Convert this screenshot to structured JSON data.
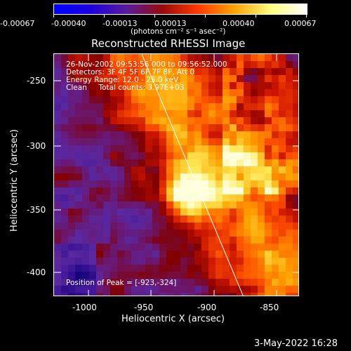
{
  "colorbar": {
    "tick_labels": [
      "-0.00067",
      "-0.00040",
      "-0.00013",
      "0.00013",
      "0.00040",
      "0.00067"
    ],
    "units": "(photons cm⁻² s⁻¹ asec⁻²)",
    "colors": [
      "#0000ff",
      "#1b00e0",
      "#5a1a9a",
      "#9a0a0a",
      "#ff3a00",
      "#ffa000",
      "#ffff80",
      "#ffffff"
    ]
  },
  "title": "Reconstructed RHESSI Image",
  "annotations": {
    "time_range": "26-Nov-2002 09:53:56.000 to 09:56:52.000",
    "detectors": "Detectors: 3F 4F 5F 6F 7F 8F, Att 0",
    "energy_range": "Energy Range: 12.0 - 25.0 keV",
    "method_counts": "Clean     Total counts: 3.97E+03",
    "peak_position": "Position of Peak = [-923,-324]"
  },
  "x_axis": {
    "label": "Heliocentric X (arcsec)",
    "tick_labels": [
      "-1000",
      "-950",
      "-900",
      "-850"
    ],
    "range": [
      -1025,
      -830
    ]
  },
  "y_axis": {
    "label": "Heliocentric Y (arcsec)",
    "tick_labels": [
      "-250",
      "-300",
      "-350",
      "-400"
    ],
    "range": [
      -420,
      -225
    ]
  },
  "footer_timestamp": "3-May-2022 16:28"
}
